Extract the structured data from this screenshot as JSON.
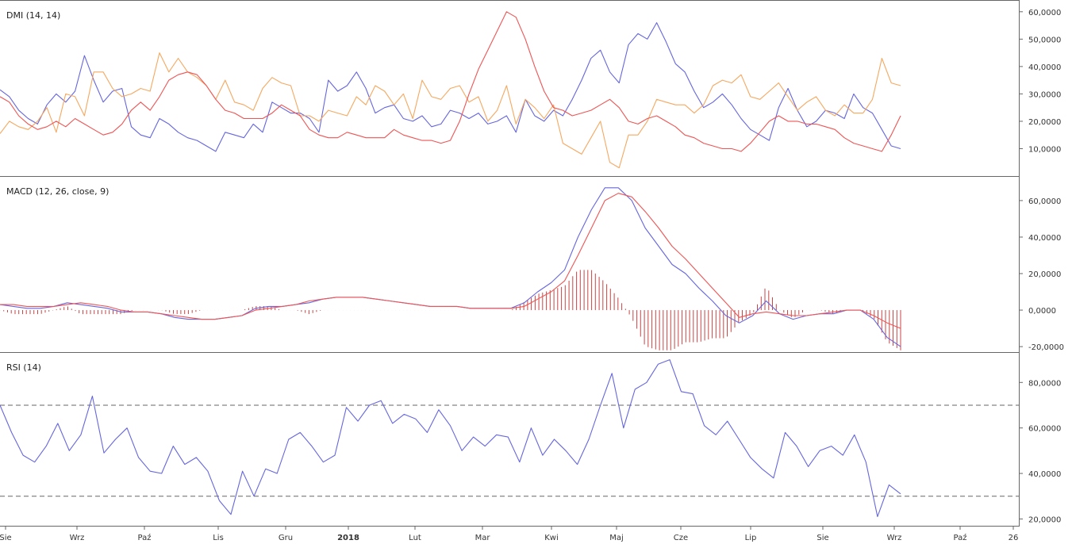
{
  "chart_data": [
    {
      "type": "line",
      "title": "DMI (14, 14)",
      "y_ticks": [
        "60,0000",
        "50,0000",
        "40,0000",
        "30,0000",
        "20,0000",
        "10,0000"
      ],
      "y_tick_values": [
        60,
        50,
        40,
        30,
        20,
        10
      ],
      "ylim": [
        0,
        64
      ],
      "colors": {
        "plus_di": "#6666dd",
        "minus_di": "#f5a860",
        "adx": "#ee5555"
      },
      "series": [
        {
          "key": "plus_di",
          "values": [
            31.5,
            29,
            24,
            21,
            19,
            26,
            30,
            27,
            31,
            44,
            35,
            27,
            31,
            32,
            18,
            15,
            14,
            21,
            19,
            16,
            14,
            13,
            11,
            9,
            16,
            15,
            14,
            19,
            16,
            27,
            25,
            23,
            23,
            21,
            16,
            35,
            31,
            33,
            38,
            32,
            23,
            25,
            26,
            21,
            20,
            22,
            18,
            19,
            24,
            23,
            21,
            23,
            19,
            20,
            22,
            16,
            28,
            22,
            20,
            24,
            22,
            28,
            35,
            43,
            46,
            38,
            34,
            48,
            52,
            50,
            56,
            49,
            41,
            38,
            31,
            25,
            27,
            30,
            26,
            21,
            17,
            15,
            13,
            25,
            32,
            24,
            18,
            20,
            24,
            23,
            21,
            30,
            25,
            23,
            17,
            11,
            10
          ]
        },
        {
          "key": "minus_di",
          "values": [
            15.5,
            20,
            18,
            17,
            20,
            25,
            16,
            30,
            29,
            22,
            38,
            38,
            32,
            29,
            30,
            32,
            31,
            45,
            38,
            43,
            38,
            36,
            33,
            28,
            35,
            27,
            26,
            24,
            32,
            36,
            34,
            33,
            22,
            22,
            20,
            24,
            23,
            22,
            29,
            26,
            33,
            31,
            26,
            30,
            21,
            35,
            29,
            28,
            32,
            33,
            27,
            29,
            20,
            24,
            33,
            19,
            28,
            25,
            21,
            26,
            12,
            10,
            8,
            14,
            20,
            5,
            3,
            15,
            15,
            20,
            28,
            27,
            26,
            26,
            23,
            26,
            33,
            35,
            34,
            37,
            29,
            28,
            31,
            34,
            29,
            24,
            27,
            29,
            24,
            22,
            26,
            23,
            23,
            28,
            43,
            34,
            33
          ]
        },
        {
          "key": "adx",
          "values": [
            29,
            27,
            22,
            19,
            17,
            18,
            20,
            18,
            21,
            19,
            17,
            15,
            16,
            19,
            24,
            27,
            24,
            29,
            35,
            37,
            38,
            37,
            33,
            28,
            24,
            23,
            21,
            21,
            21,
            23,
            26,
            24,
            22,
            17,
            15,
            14,
            14,
            16,
            15,
            14,
            14,
            14,
            17,
            15,
            14,
            13,
            13,
            12,
            13,
            20,
            30,
            39,
            46,
            53,
            60,
            58,
            50,
            40,
            31,
            25,
            24,
            22,
            23,
            24,
            26,
            28,
            25,
            20,
            19,
            21,
            22,
            20,
            18,
            15,
            14,
            12,
            11,
            10,
            10,
            9,
            12,
            16,
            20,
            22,
            20,
            20,
            19,
            19,
            18,
            17,
            14,
            12,
            11,
            10,
            9,
            15,
            22
          ]
        }
      ]
    },
    {
      "type": "line",
      "title": "MACD (12, 26, close, 9)",
      "y_ticks": [
        "60,0000",
        "40,0000",
        "20,0000",
        "0,0000",
        "-20,0000"
      ],
      "y_tick_values": [
        60,
        40,
        20,
        0,
        -20
      ],
      "ylim": [
        -23,
        73
      ],
      "colors": {
        "macd": "#6666dd",
        "signal": "#ee5555",
        "histogram": "#cc4444"
      },
      "series": [
        {
          "key": "macd",
          "values": [
            3,
            2,
            1,
            1,
            2,
            4,
            3,
            2,
            1,
            -1,
            -1,
            -1,
            -2,
            -4,
            -5,
            -5,
            -5,
            -4,
            -3,
            1,
            2,
            2,
            3,
            4,
            6,
            7,
            7,
            7,
            6,
            5,
            4,
            3,
            2,
            2,
            2,
            1,
            1,
            1,
            1,
            4,
            10,
            15,
            22,
            40,
            55,
            67,
            67,
            60,
            45,
            35,
            25,
            20,
            12,
            5,
            -3,
            -7,
            -3,
            5,
            -2,
            -5,
            -3,
            -2,
            -2,
            0,
            0,
            -5,
            -15,
            -20
          ]
        },
        {
          "key": "signal",
          "values": [
            3,
            3,
            2,
            2,
            2,
            3,
            4,
            3,
            2,
            0,
            -1,
            -1,
            -2,
            -3,
            -4,
            -5,
            -5,
            -4,
            -3,
            0,
            1,
            2,
            3,
            5,
            6,
            7,
            7,
            7,
            6,
            5,
            4,
            3,
            2,
            2,
            2,
            1,
            1,
            1,
            1,
            2,
            6,
            10,
            16,
            30,
            45,
            60,
            64,
            62,
            54,
            45,
            35,
            28,
            20,
            12,
            4,
            -4,
            -2,
            -1,
            -2,
            -3,
            -3,
            -2,
            -1,
            0,
            0,
            -3,
            -7,
            -10
          ]
        }
      ]
    },
    {
      "type": "line",
      "title": "RSI (14)",
      "y_ticks": [
        "80,0000",
        "60,0000",
        "40,0000",
        "20,0000"
      ],
      "y_tick_values": [
        80,
        60,
        40,
        20
      ],
      "ylim": [
        17,
        93
      ],
      "reference_lines": [
        70,
        30
      ],
      "colors": {
        "rsi": "#6666dd",
        "reference": "#666666"
      },
      "series": [
        {
          "key": "rsi",
          "values": [
            70,
            58,
            48,
            45,
            52,
            62,
            50,
            57,
            74,
            49,
            55,
            60,
            47,
            41,
            40,
            52,
            44,
            47,
            41,
            28,
            22,
            41,
            30,
            42,
            40,
            55,
            58,
            52,
            45,
            48,
            69,
            63,
            70,
            72,
            62,
            66,
            64,
            58,
            68,
            61,
            50,
            56,
            52,
            57,
            56,
            45,
            60,
            48,
            55,
            50,
            44,
            55,
            70,
            84,
            60,
            77,
            80,
            88,
            90,
            76,
            75,
            61,
            57,
            63,
            55,
            47,
            42,
            38,
            58,
            52,
            43,
            50,
            52,
            48,
            57,
            45,
            21,
            35,
            31
          ]
        }
      ]
    }
  ],
  "x_axis": {
    "labels": [
      "Sie",
      "Wrz",
      "Paź",
      "Lis",
      "Gru",
      "2018",
      "Lut",
      "Mar",
      "Kwi",
      "Maj",
      "Cze",
      "Lip",
      "Sie",
      "Wrz",
      "Paź",
      "26"
    ],
    "bold_labels": [
      "2018"
    ]
  }
}
